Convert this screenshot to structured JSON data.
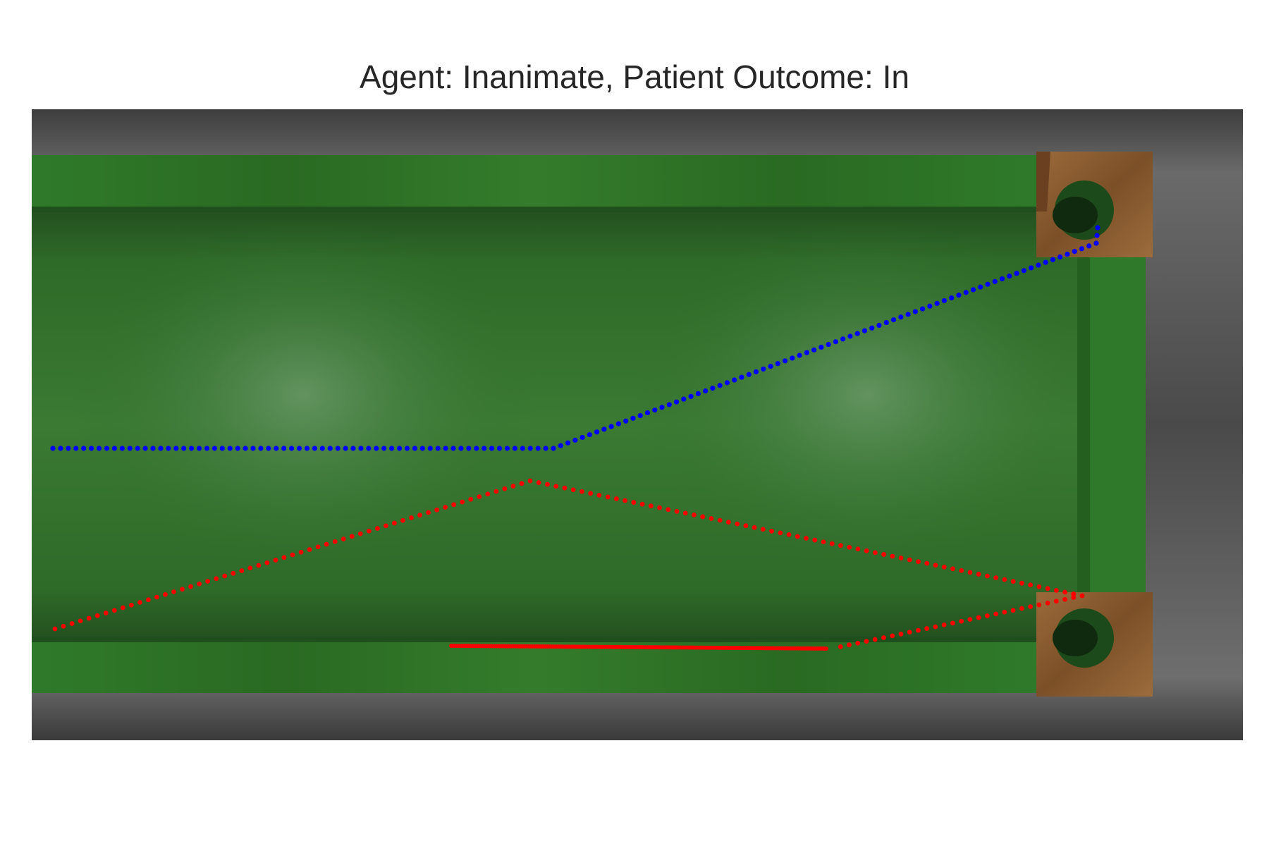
{
  "title": "Agent: Inanimate, Patient Outcome: In",
  "colors": {
    "floor": "#5a5a5a",
    "felt": "#2f7a2a",
    "felt_dark": "#1f5a1c",
    "wood": "#8a5a30",
    "agent_path": "#0000ff",
    "patient_path": "#ff0000"
  },
  "trajectories": [
    {
      "name": "agent",
      "color": "#0000ff",
      "style": "dotted"
    },
    {
      "name": "patient",
      "color": "#ff0000",
      "style": "dotted"
    },
    {
      "name": "patient-pocketed",
      "color": "#ff0000",
      "style": "solid"
    }
  ]
}
